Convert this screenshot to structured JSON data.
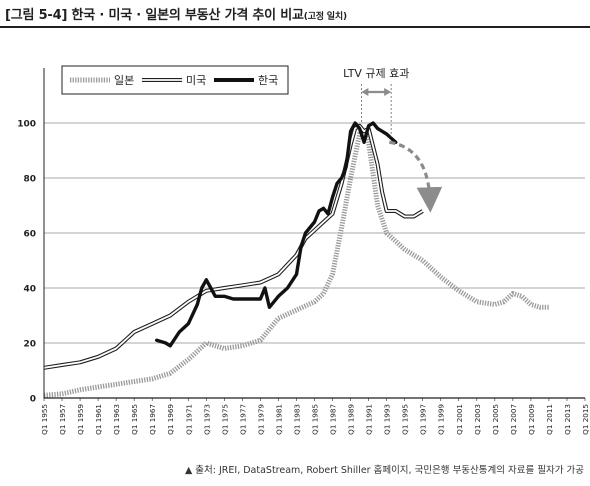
{
  "figure": {
    "title": "[그림 5-4] 한국 · 미국 · 일본의 부동산 가격 추이 비교",
    "title_sub": "(고정 일치)",
    "source": "▲ 출처: JREI, DataStream, Robert Shiller 홈페이지, 국민은행 부동산통계의 자료를 필자가 가공"
  },
  "chart_data": {
    "type": "line",
    "title": "",
    "xlabel": "",
    "ylabel": "",
    "ylim": [
      0,
      120
    ],
    "xlim": [
      1955,
      2015
    ],
    "yticks": [
      0,
      20,
      40,
      60,
      80,
      100
    ],
    "xticks": [
      "Q1 1955",
      "Q1 1957",
      "Q1 1959",
      "Q1 1961",
      "Q1 1963",
      "Q1 1965",
      "Q1 1967",
      "Q1 1969",
      "Q1 1971",
      "Q1 1973",
      "Q1 1975",
      "Q1 1977",
      "Q1 1979",
      "Q1 1981",
      "Q1 1983",
      "Q1 1985",
      "Q1 1987",
      "Q1 1989",
      "Q1 1991",
      "Q1 1993",
      "Q1 1995",
      "Q1 1997",
      "Q1 1999",
      "Q1 2001",
      "Q1 2003",
      "Q1 2005",
      "Q1 2007",
      "Q1 2009",
      "Q1 2011",
      "Q1 2013",
      "Q1 2015"
    ],
    "grid": "horizontal",
    "legend_position": "top-left",
    "annotation": {
      "label": "LTV 규제 효과",
      "x_range": [
        1990.2,
        1993.5
      ],
      "arrow_from": [
        1993.3,
        93
      ],
      "arrow_to": [
        1997.8,
        72
      ]
    },
    "series": [
      {
        "name": "일본",
        "style": "hatched",
        "color": "#8c8c8c",
        "x": [
          1955,
          1957,
          1959,
          1961,
          1963,
          1965,
          1967,
          1969,
          1971,
          1972,
          1973,
          1974,
          1975,
          1977,
          1979,
          1980,
          1981,
          1983,
          1985,
          1986,
          1987,
          1988,
          1989,
          1990,
          1990.5,
          1991,
          1992,
          1993,
          1995,
          1997,
          1999,
          2001,
          2003,
          2005,
          2006,
          2007,
          2008,
          2009,
          2010,
          2011
        ],
        "y": [
          1,
          1.5,
          3,
          4,
          5,
          6,
          7,
          9,
          14,
          17,
          20,
          19,
          18,
          19,
          21,
          25,
          29,
          32,
          35,
          38,
          45,
          62,
          80,
          96,
          98,
          93,
          70,
          60,
          54,
          50,
          44,
          39,
          35,
          34,
          35,
          38,
          37,
          34,
          33,
          33
        ]
      },
      {
        "name": "미국",
        "style": "double",
        "color": "#231f20",
        "x": [
          1955,
          1957,
          1959,
          1961,
          1963,
          1965,
          1967,
          1969,
          1971,
          1973,
          1975,
          1977,
          1979,
          1981,
          1983,
          1984,
          1985,
          1986,
          1987,
          1988,
          1989,
          1989.5,
          1990,
          1990.5,
          1991,
          1992,
          1992.5,
          1993,
          1994,
          1995,
          1996,
          1997
        ],
        "y": [
          11,
          12,
          13,
          15,
          18,
          24,
          27,
          30,
          35,
          39,
          40,
          41,
          42,
          45,
          52,
          58,
          61,
          64,
          67,
          78,
          92,
          98,
          99,
          97,
          98,
          85,
          75,
          68,
          68,
          66,
          66,
          68
        ]
      },
      {
        "name": "한국",
        "style": "bold",
        "color": "#111111",
        "x": [
          1967.5,
          1968.5,
          1969,
          1970,
          1971,
          1972,
          1972.5,
          1973,
          1973.5,
          1974,
          1975,
          1976,
          1977,
          1978,
          1979,
          1979.5,
          1980,
          1981,
          1982,
          1983,
          1983.5,
          1984,
          1984.5,
          1985,
          1985.5,
          1986,
          1986.5,
          1987,
          1987.5,
          1988,
          1988.5,
          1989,
          1989.5,
          1990,
          1990.5,
          1991,
          1991.5,
          1992,
          1993,
          1994
        ],
        "y": [
          21,
          20,
          19,
          24,
          27,
          34,
          40,
          43,
          40,
          37,
          37,
          36,
          36,
          36,
          36,
          40,
          33,
          37,
          40,
          45,
          55,
          60,
          62,
          64,
          68,
          69,
          67,
          73,
          78,
          80,
          84,
          97,
          100,
          98,
          93,
          99,
          100,
          98,
          96,
          93
        ]
      }
    ]
  }
}
